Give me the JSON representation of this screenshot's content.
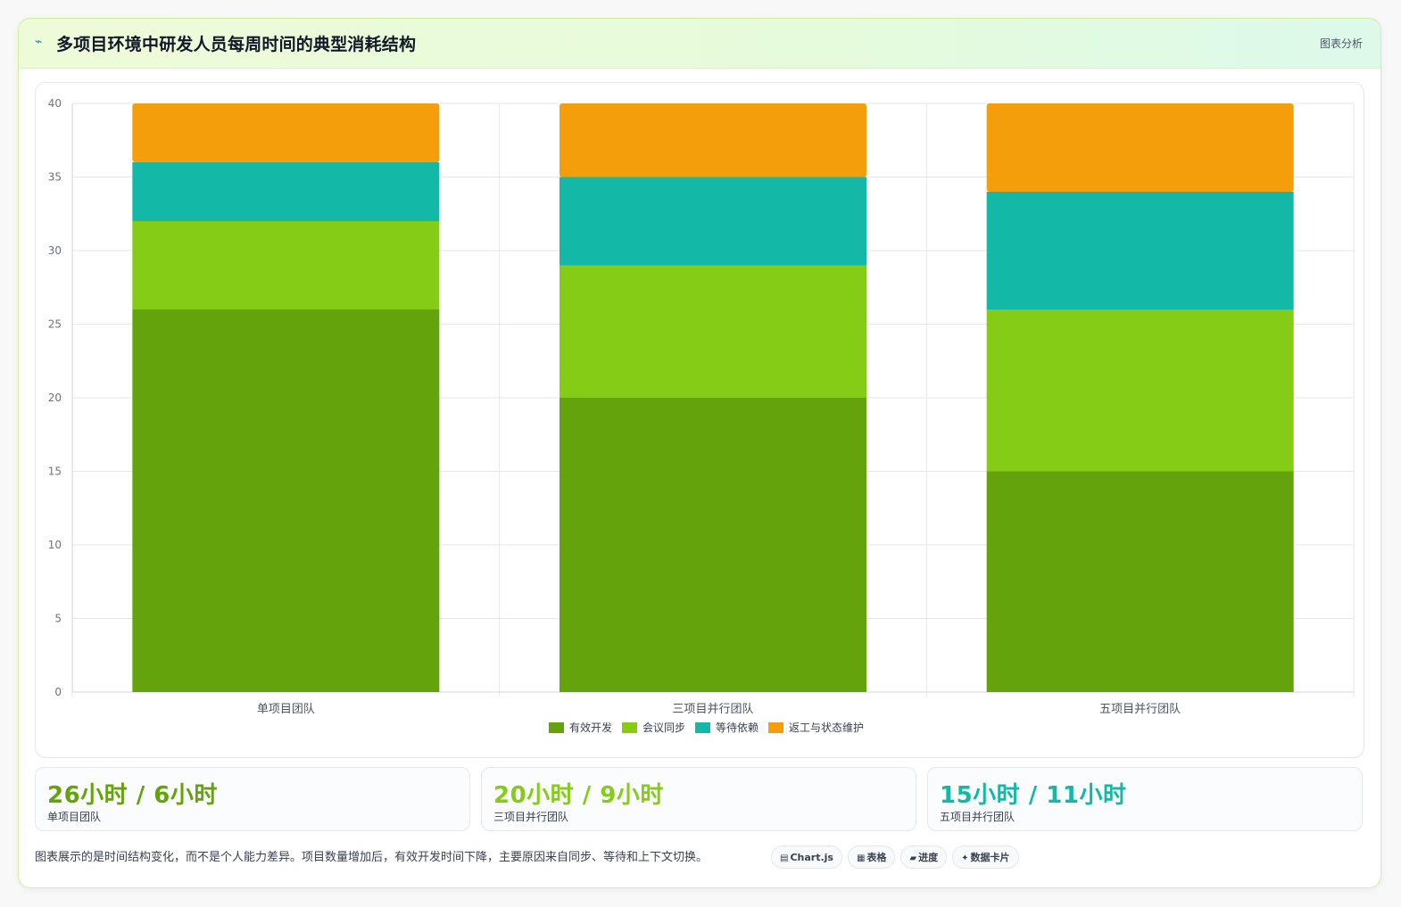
{
  "header": {
    "icon": "trend-icon",
    "title": "多项目环境中研发人员每周时间的典型消耗结构",
    "badge": "图表分析"
  },
  "colors": {
    "effective_dev": "#65a30d",
    "meeting_sync": "#84cc16",
    "waiting_deps": "#14b8a6",
    "rework": "#f59e0b"
  },
  "chart_data": {
    "type": "bar",
    "stacked": true,
    "categories": [
      "单项目团队",
      "三项目并行团队",
      "五项目并行团队"
    ],
    "series": [
      {
        "name": "有效开发",
        "color": "#65a30d",
        "values": [
          26,
          20,
          15
        ]
      },
      {
        "name": "会议同步",
        "color": "#84cc16",
        "values": [
          6,
          9,
          11
        ]
      },
      {
        "name": "等待依赖",
        "color": "#14b8a6",
        "values": [
          4,
          6,
          8
        ]
      },
      {
        "name": "返工与状态维护",
        "color": "#f59e0b",
        "values": [
          4,
          5,
          6
        ]
      }
    ],
    "ylim": [
      0,
      40
    ],
    "yticks": [
      0,
      5,
      10,
      15,
      20,
      25,
      30,
      35,
      40
    ],
    "grid": true,
    "legend": "bottom"
  },
  "stats": [
    {
      "value": "26小时 / 6小时",
      "label": "单项目团队",
      "color": "#65a30d"
    },
    {
      "value": "20小时 / 9小时",
      "label": "三项目并行团队",
      "color": "#84cc16"
    },
    {
      "value": "15小时 / 11小时",
      "label": "五项目并行团队",
      "color": "#14b8a6"
    }
  ],
  "footnote": "图表展示的是时间结构变化，而不是个人能力差异。项目数量增加后，有效开发时间下降，主要原因来自同步、等待和上下文切换。",
  "chips": [
    {
      "icon": "table-icon",
      "label": "Chart.js"
    },
    {
      "icon": "grid-icon",
      "label": "表格"
    },
    {
      "icon": "progress-icon",
      "label": "进度"
    },
    {
      "icon": "sparkle-icon",
      "label": "数据卡片"
    }
  ]
}
